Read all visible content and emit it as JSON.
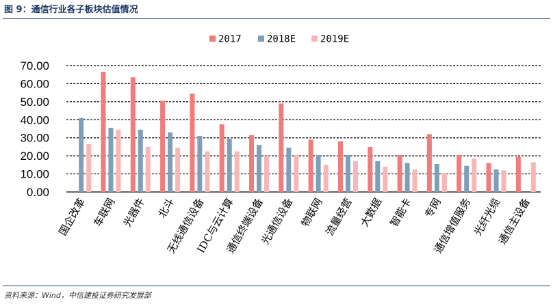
{
  "figure": {
    "title": "图 9：通信行业各子板块估值情况",
    "source": "资料来源：Wind，中信建投证券研究发展部"
  },
  "colors": {
    "s2017": "#f07c7c",
    "s2018E": "#7f9fb8",
    "s2019E": "#f8b7b7",
    "grid": "#000000",
    "frame": "#1f3864"
  },
  "chart_data": {
    "type": "bar",
    "categories": [
      "国企改革",
      "车联网",
      "光器件",
      "北斗",
      "无线通信设备",
      "IDC与云计算",
      "通信终端设备",
      "光通信设备",
      "物联网",
      "流量经营",
      "大数据",
      "智能卡",
      "专网",
      "通信增值服务",
      "光纤光缆",
      "通信主设备"
    ],
    "series": [
      {
        "name": "2017",
        "values": [
          null,
          66.5,
          63.5,
          50.5,
          54.5,
          37.5,
          31.5,
          49.0,
          29.0,
          28.0,
          25.0,
          20.5,
          32.0,
          20.5,
          16.0,
          19.5
        ]
      },
      {
        "name": "2018E",
        "values": [
          41.0,
          35.5,
          34.5,
          33.0,
          31.0,
          29.5,
          26.0,
          24.5,
          20.5,
          20.5,
          17.0,
          16.0,
          15.5,
          14.5,
          12.5,
          null
        ]
      },
      {
        "name": "2019E",
        "values": [
          26.5,
          34.5,
          25.0,
          24.5,
          22.5,
          22.5,
          20.0,
          20.5,
          15.0,
          17.0,
          14.0,
          12.5,
          10.5,
          18.5,
          12.0,
          16.5
        ]
      }
    ],
    "yticks": [
      "0.00",
      "10.00",
      "20.00",
      "30.00",
      "40.00",
      "50.00",
      "60.00",
      "70.00"
    ],
    "ylim": [
      0,
      70
    ],
    "grid": true,
    "legend_position": "top-center"
  }
}
